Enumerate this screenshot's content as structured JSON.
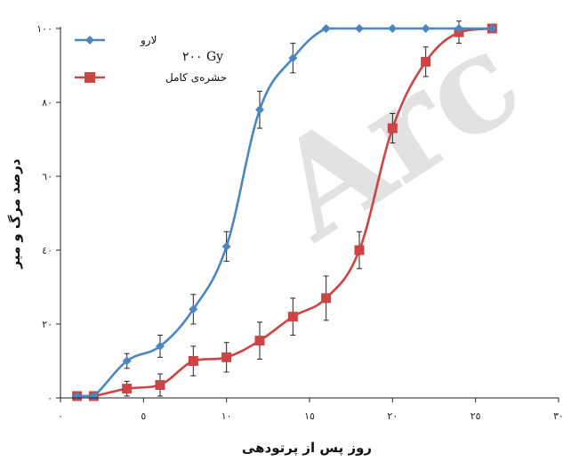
{
  "chart_data": {
    "type": "line",
    "xlabel": "روز پس از پرتودهی",
    "ylabel": "درصد مرگ و میر",
    "xlim": [
      0,
      30
    ],
    "ylim": [
      0,
      100
    ],
    "x_ticks": [
      0,
      5,
      10,
      15,
      20,
      25,
      30
    ],
    "x_tick_labels": [
      "٠",
      "٥",
      "١٠",
      "١٥",
      "٢٠",
      "٢٥",
      "٣٠"
    ],
    "y_ticks": [
      0,
      20,
      40,
      60,
      80,
      100
    ],
    "y_tick_labels": [
      "٠",
      "٢٠",
      "٤٠",
      "٦٠",
      "٨٠",
      "١٠٠"
    ],
    "annotation": "٢٠٠ Gy",
    "watermark": "Arc",
    "legend_position": "top-left",
    "grid": false,
    "series": [
      {
        "name": "لارو",
        "color": "#4a86c0",
        "marker": "diamond",
        "x": [
          1,
          2,
          4,
          6,
          8,
          10,
          12,
          14,
          16,
          18,
          20,
          22,
          24,
          26
        ],
        "y": [
          0.5,
          0.5,
          10,
          14,
          24,
          41,
          78,
          92,
          100,
          100,
          100,
          100,
          100,
          100
        ],
        "err": [
          0,
          0,
          2,
          3,
          4,
          4,
          5,
          4,
          0,
          0,
          0,
          0,
          0,
          0
        ]
      },
      {
        "name": "حشره‌ی کامل",
        "color": "#cc4444",
        "marker": "square",
        "x": [
          1,
          2,
          4,
          6,
          8,
          10,
          12,
          14,
          16,
          18,
          20,
          22,
          24,
          26
        ],
        "y": [
          0.5,
          0.5,
          2.5,
          3.5,
          10,
          11,
          15.5,
          22,
          27,
          40,
          73,
          91,
          99,
          100
        ],
        "err": [
          0,
          0,
          2,
          3,
          4,
          4,
          5,
          5,
          6,
          5,
          4,
          4,
          3,
          0
        ]
      }
    ]
  }
}
